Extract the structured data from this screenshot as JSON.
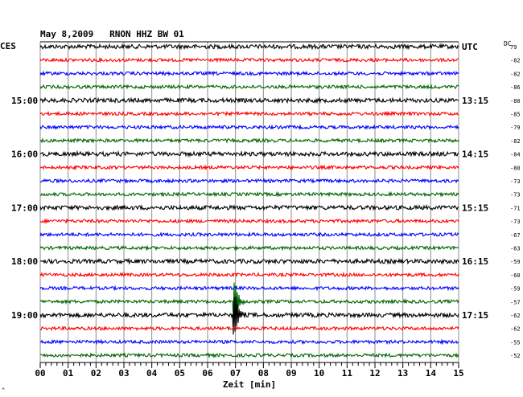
{
  "header": {
    "title": "May 8,2009   RNON HHZ BW 01",
    "left_tz": "CES",
    "right_tz": "UTC",
    "dc_label": "DC"
  },
  "footer": {
    "xlabel": "Zeit [min]",
    "corner_mark": "^"
  },
  "colors": {
    "black": "#000000",
    "red": "#ff0000",
    "blue": "#0000ff",
    "green": "#006400",
    "grid": "#8c8c8c",
    "background": "#ffffff"
  },
  "chart_data": {
    "type": "line",
    "title": "May 8,2009   RNON HHZ BW 01",
    "xlabel": "Zeit [min]",
    "ylabel": "",
    "x_range": [
      0,
      15
    ],
    "x_ticks": [
      "00",
      "01",
      "02",
      "03",
      "04",
      "05",
      "06",
      "07",
      "08",
      "09",
      "10",
      "11",
      "12",
      "13",
      "14",
      "15"
    ],
    "trace_color_cycle": [
      "black",
      "red",
      "blue",
      "green"
    ],
    "traces": 24,
    "left_labels": [
      {
        "trace": 4,
        "text": "15:00"
      },
      {
        "trace": 8,
        "text": "16:00"
      },
      {
        "trace": 12,
        "text": "17:00"
      },
      {
        "trace": 16,
        "text": "18:00"
      },
      {
        "trace": 20,
        "text": "19:00"
      }
    ],
    "right_labels": [
      {
        "trace": 0,
        "text": "UTC"
      },
      {
        "trace": 4,
        "text": "13:15"
      },
      {
        "trace": 8,
        "text": "14:15"
      },
      {
        "trace": 12,
        "text": "15:15"
      },
      {
        "trace": 16,
        "text": "16:15"
      },
      {
        "trace": 20,
        "text": "17:15"
      }
    ],
    "dc_offsets": [
      "79",
      "-82",
      "-82",
      "-86",
      "-80",
      "-85",
      "-79",
      "-82",
      "-84",
      "-80",
      "-73",
      "-73",
      "-71",
      "-73",
      "-67",
      "-63",
      "-59",
      "-60",
      "-59",
      "-57",
      "-62",
      "-62",
      "-55",
      "-52"
    ],
    "events": [
      {
        "trace": 19,
        "minute": 6.95,
        "amplitude": "large",
        "color": "green"
      },
      {
        "trace": 20,
        "minute": 6.95,
        "amplitude": "large",
        "color": "black"
      }
    ],
    "grid": true
  }
}
